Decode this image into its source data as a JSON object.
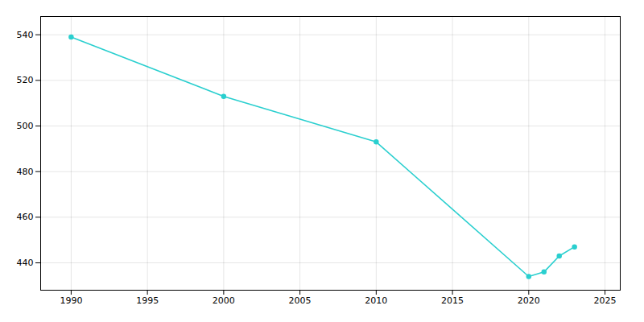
{
  "chart_data": {
    "type": "line",
    "x": [
      1990,
      2000,
      2010,
      2020,
      2021,
      2022,
      2023
    ],
    "values": [
      539,
      513,
      493,
      434,
      436,
      443,
      447
    ],
    "color": "#2acfcf",
    "marker": "circle",
    "xlim": [
      1988,
      2026
    ],
    "ylim": [
      428,
      548
    ],
    "xticks": [
      1990,
      1995,
      2000,
      2005,
      2010,
      2015,
      2020,
      2025
    ],
    "yticks": [
      440,
      460,
      480,
      500,
      520,
      540
    ],
    "grid": true
  }
}
